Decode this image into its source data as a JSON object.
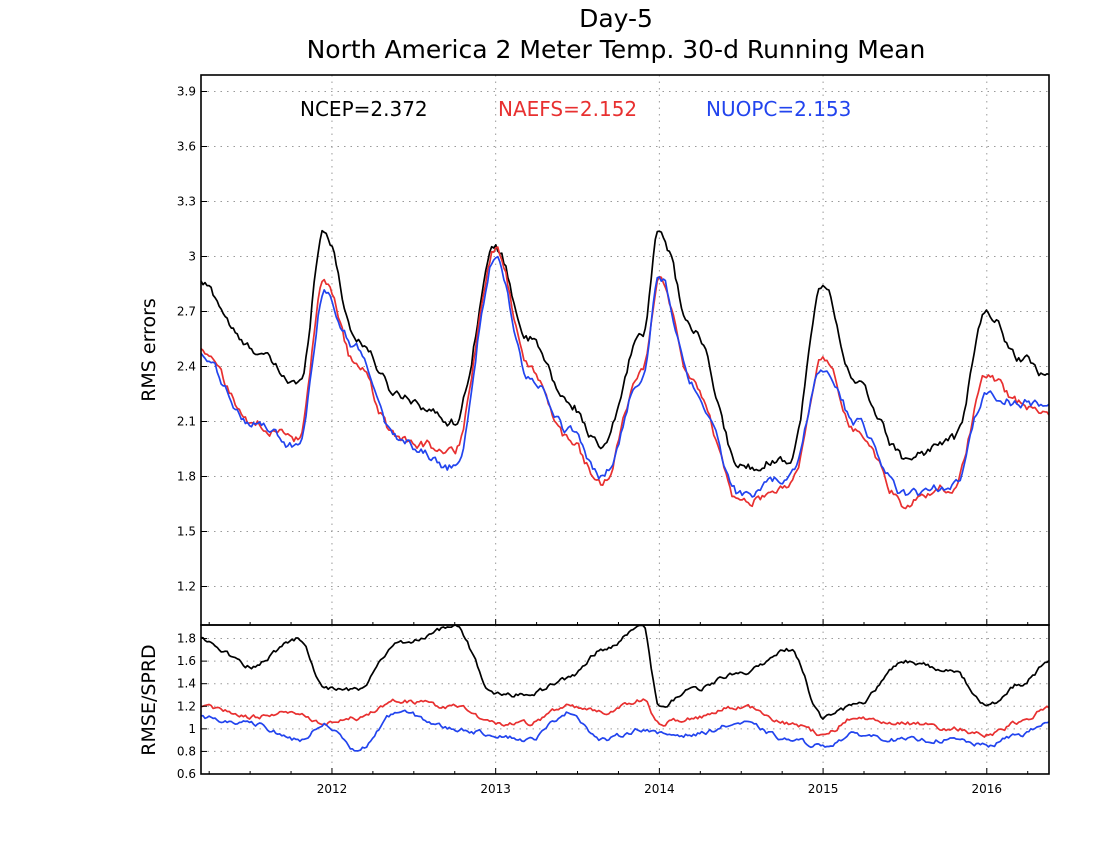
{
  "chart_data": [
    {
      "type": "line",
      "title": "Day-5",
      "subtitle": "North America 2 Meter Temp. 30-d Running Mean",
      "ylabel": "RMS errors",
      "xlabel": "",
      "x_ticks": [
        "2012",
        "2013",
        "2014",
        "2015",
        "2016"
      ],
      "y_ticks": [
        "1.2",
        "1.5",
        "1.8",
        "2.1",
        "2.4",
        "2.7",
        "3",
        "3.3",
        "3.6",
        "3.9"
      ],
      "ylim": [
        0.99,
        3.99
      ],
      "xlim": [
        2011.2,
        2016.38
      ],
      "grid": true,
      "x": [
        2011.2,
        2011.5,
        2011.8,
        2011.95,
        2012.15,
        2012.4,
        2012.75,
        2013.0,
        2013.2,
        2013.45,
        2013.65,
        2013.9,
        2014.0,
        2014.2,
        2014.5,
        2014.8,
        2015.0,
        2015.2,
        2015.5,
        2015.8,
        2016.0,
        2016.2,
        2016.38
      ],
      "series": [
        {
          "name": "NCEP",
          "legend": "NCEP=2.372",
          "color": "#000000",
          "values": [
            2.85,
            2.5,
            2.3,
            3.15,
            2.55,
            2.25,
            2.1,
            3.05,
            2.55,
            2.2,
            1.95,
            2.6,
            3.15,
            2.6,
            1.85,
            1.9,
            2.85,
            2.3,
            1.9,
            2.0,
            2.7,
            2.45,
            2.35
          ]
        },
        {
          "name": "NAEFS",
          "legend": "NAEFS=2.152",
          "color": "#e83030",
          "values": [
            2.5,
            2.1,
            2.0,
            2.85,
            2.4,
            2.0,
            1.95,
            3.05,
            2.4,
            2.0,
            1.75,
            2.4,
            2.9,
            2.3,
            1.65,
            1.75,
            2.45,
            2.05,
            1.65,
            1.75,
            2.35,
            2.2,
            2.15
          ]
        },
        {
          "name": "NUOPC",
          "legend": "NUOPC=2.153",
          "color": "#2244ee",
          "values": [
            2.45,
            2.1,
            1.95,
            2.8,
            2.5,
            2.0,
            1.85,
            3.0,
            2.35,
            2.05,
            1.8,
            2.35,
            2.9,
            2.3,
            1.7,
            1.8,
            2.4,
            2.1,
            1.7,
            1.75,
            2.25,
            2.2,
            2.2
          ]
        }
      ]
    },
    {
      "type": "line",
      "ylabel": "RMSE/SPRD",
      "xlabel": "",
      "x_ticks": [
        "2012",
        "2013",
        "2014",
        "2015",
        "2016"
      ],
      "y_ticks": [
        "0.6",
        "0.8",
        "1",
        "1.2",
        "1.4",
        "1.6",
        "1.8"
      ],
      "ylim": [
        0.6,
        1.92
      ],
      "xlim": [
        2011.2,
        2016.38
      ],
      "grid": true,
      "x": [
        2011.2,
        2011.5,
        2011.8,
        2011.95,
        2012.15,
        2012.4,
        2012.75,
        2013.0,
        2013.2,
        2013.45,
        2013.65,
        2013.9,
        2014.0,
        2014.2,
        2014.5,
        2014.8,
        2015.0,
        2015.2,
        2015.5,
        2015.8,
        2016.0,
        2016.2,
        2016.38
      ],
      "series": [
        {
          "name": "NCEP",
          "color": "#000000",
          "values": [
            1.8,
            1.55,
            1.8,
            1.35,
            1.35,
            1.75,
            1.9,
            1.3,
            1.3,
            1.45,
            1.7,
            1.9,
            1.2,
            1.35,
            1.5,
            1.7,
            1.1,
            1.2,
            1.6,
            1.5,
            1.2,
            1.4,
            1.58
          ]
        },
        {
          "name": "NAEFS",
          "color": "#e83030",
          "values": [
            1.2,
            1.1,
            1.15,
            1.05,
            1.1,
            1.25,
            1.2,
            1.05,
            1.05,
            1.2,
            1.15,
            1.25,
            1.05,
            1.1,
            1.2,
            1.05,
            0.95,
            1.1,
            1.05,
            1.0,
            0.95,
            1.05,
            1.2
          ]
        },
        {
          "name": "NUOPC",
          "color": "#2244ee",
          "values": [
            1.1,
            1.05,
            0.9,
            1.05,
            0.8,
            1.15,
            1.0,
            0.95,
            0.9,
            1.15,
            0.9,
            1.0,
            0.95,
            0.95,
            1.05,
            0.9,
            0.85,
            0.95,
            0.9,
            0.9,
            0.85,
            0.95,
            1.05
          ]
        }
      ]
    }
  ]
}
